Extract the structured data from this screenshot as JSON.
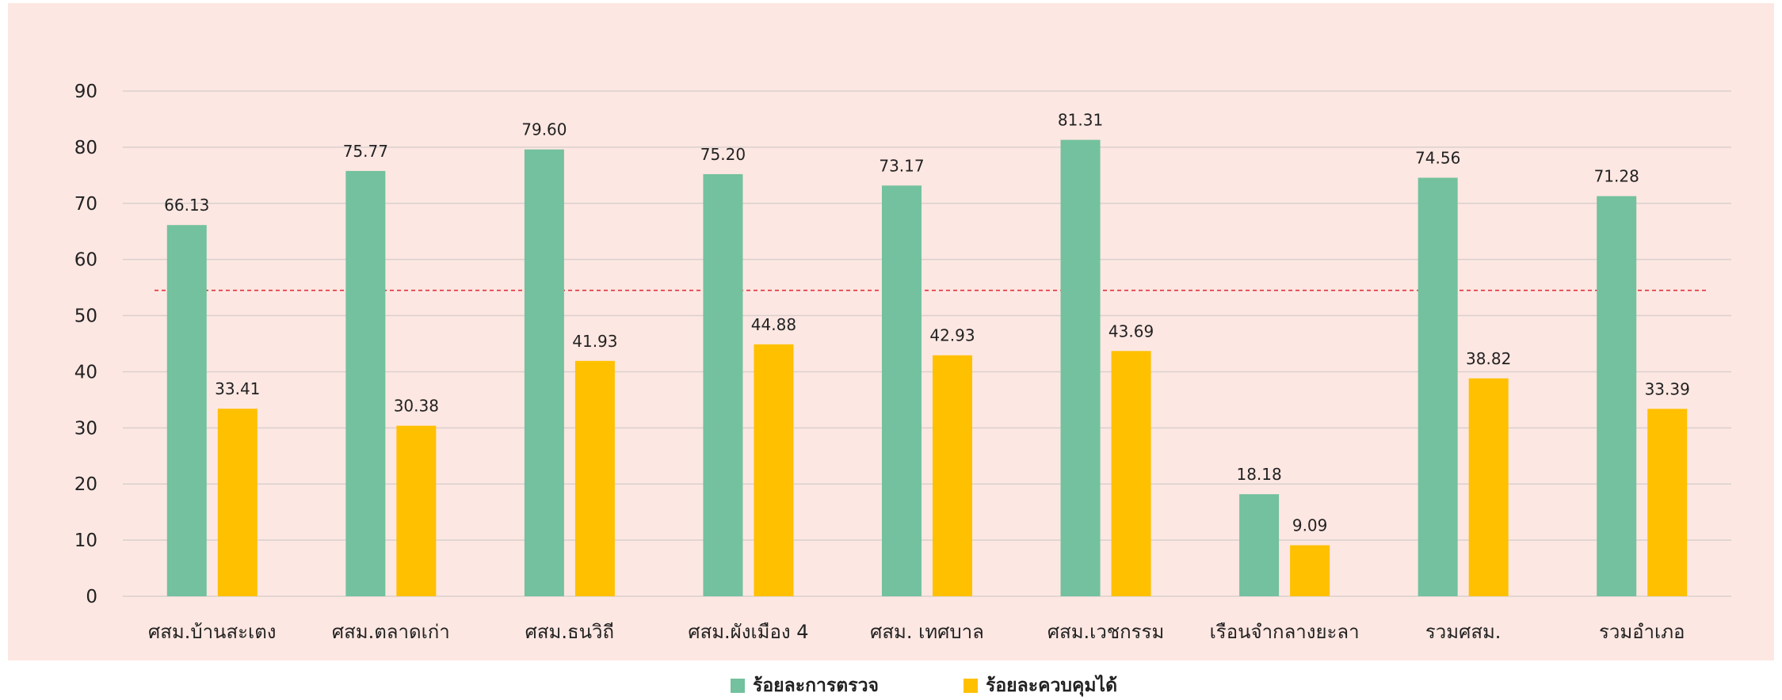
{
  "chart_data": {
    "type": "bar",
    "categories": [
      "ศสม.บ้านสะเตง",
      "ศสม.ตลาดเก่า",
      "ศสม.ธนวิถี",
      "ศสม.ผังเมือง 4",
      "ศสม. เทศบาล",
      "ศสม.เวชกรรม",
      "เรือนจำกลางยะลา",
      "รวมศสม.",
      "รวมอำเภอ"
    ],
    "series": [
      {
        "name": "ร้อยละการตรวจ",
        "color": "#73c19e",
        "values": [
          66.13,
          75.77,
          79.6,
          75.2,
          73.17,
          81.31,
          18.18,
          74.56,
          71.28
        ],
        "labels": [
          "66.13",
          "75.77",
          "79.60",
          "75.20",
          "73.17",
          "81.31",
          "18.18",
          "74.56",
          "71.28"
        ]
      },
      {
        "name": "ร้อยละควบคุมได้",
        "color": "#ffc000",
        "values": [
          33.41,
          30.38,
          41.93,
          44.88,
          42.93,
          43.69,
          9.09,
          38.82,
          33.39
        ],
        "labels": [
          "33.41",
          "30.38",
          "41.93",
          "44.88",
          "42.93",
          "43.69",
          "9.09",
          "38.82",
          "33.39"
        ]
      }
    ],
    "ylim": [
      0,
      90
    ],
    "yticks": [
      "0",
      "10",
      "20",
      "30",
      "40",
      "50",
      "60",
      "70",
      "80",
      "90"
    ],
    "reference_line": {
      "value": 54.5,
      "color": "#e0303a",
      "style": "dashed"
    },
    "grid": true,
    "legend_position": "bottom",
    "background": "#fde7e2",
    "gridline_color": "#d9d0cd"
  }
}
